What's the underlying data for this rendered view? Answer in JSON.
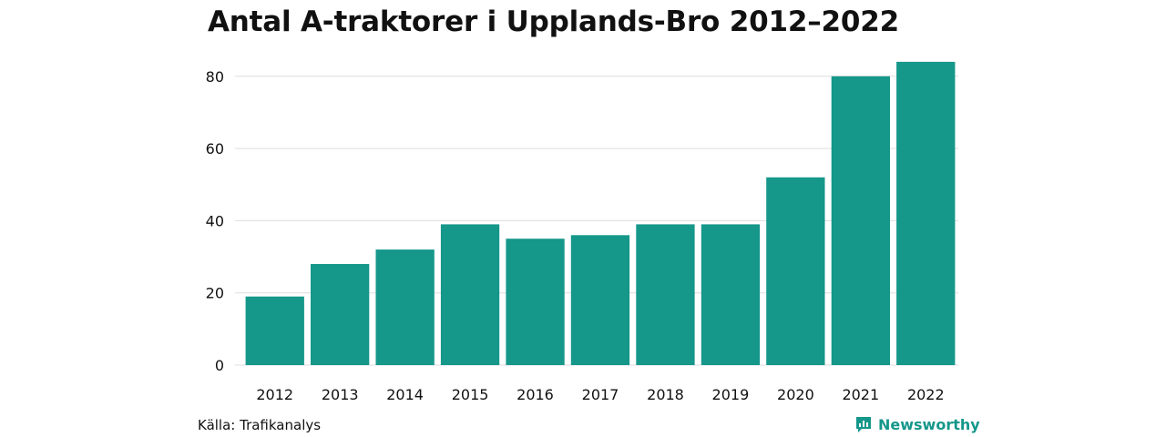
{
  "title": "Antal A-traktorer i Upplands-Bro 2012–2022",
  "source": "Källa: Trafikanalys",
  "brand": "Newsworthy",
  "colors": {
    "bar": "#15978a",
    "grid": "#dddddd",
    "text": "#111111"
  },
  "chart_data": {
    "type": "bar",
    "categories": [
      "2012",
      "2013",
      "2014",
      "2015",
      "2016",
      "2017",
      "2018",
      "2019",
      "2020",
      "2021",
      "2022"
    ],
    "values": [
      19,
      28,
      32,
      39,
      35,
      36,
      39,
      39,
      52,
      80,
      84
    ],
    "ylim": [
      0,
      86
    ],
    "yticks": [
      0,
      20,
      40,
      60,
      80
    ],
    "grid": true,
    "xlabel": "",
    "ylabel": ""
  }
}
